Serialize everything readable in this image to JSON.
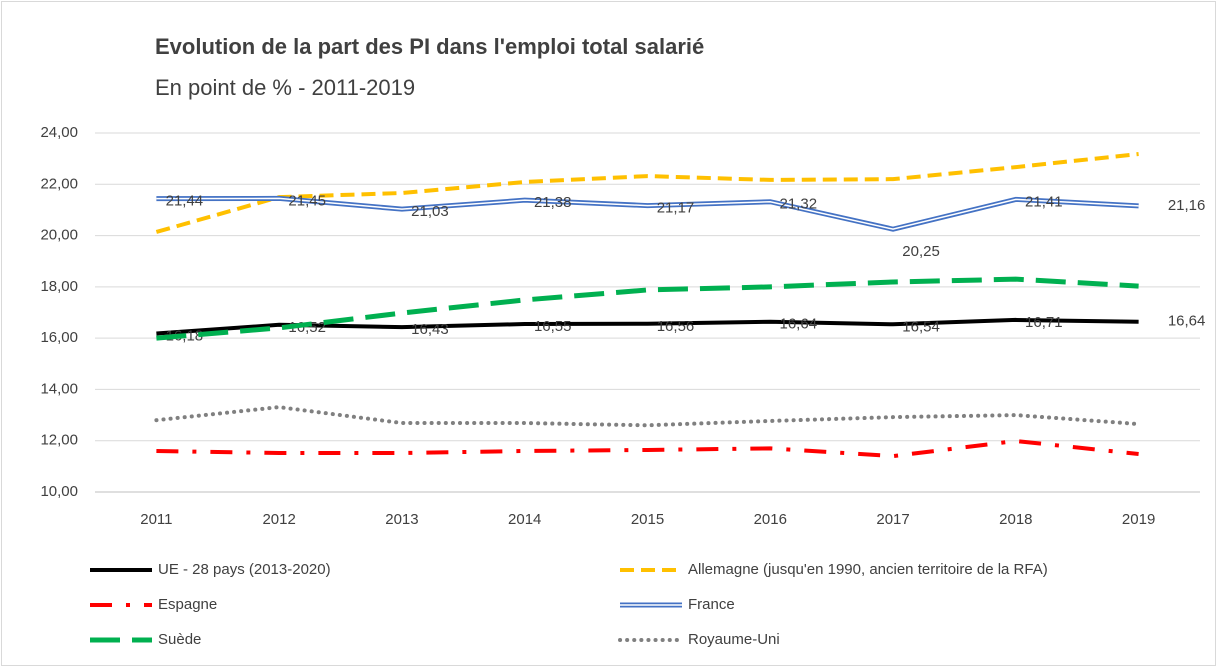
{
  "chart_data": {
    "type": "line",
    "title": "Evolution de la part des PI dans l'emploi total salarié",
    "subtitle": "En point de %  - 2011-2019",
    "categories": [
      "2011",
      "2012",
      "2013",
      "2014",
      "2015",
      "2016",
      "2017",
      "2018",
      "2019"
    ],
    "ylim": [
      10,
      24
    ],
    "yticks": [
      {
        "value": 10,
        "label": "10,00"
      },
      {
        "value": 12,
        "label": "12,00"
      },
      {
        "value": 14,
        "label": "14,00"
      },
      {
        "value": 16,
        "label": "16,00"
      },
      {
        "value": 18,
        "label": "18,00"
      },
      {
        "value": 20,
        "label": "20,00"
      },
      {
        "value": 22,
        "label": "22,00"
      },
      {
        "value": 24,
        "label": "24,00"
      }
    ],
    "grid": true,
    "legend": "bottom",
    "series": [
      {
        "name": "UE - 28 pays (2013-2020)",
        "color": "#000000",
        "style": "solid",
        "values": [
          16.18,
          16.52,
          16.43,
          16.55,
          16.56,
          16.64,
          16.54,
          16.71,
          16.64
        ],
        "value_labels": [
          "16,18",
          "16,52",
          "16,43",
          "16,55",
          "16,56",
          "16,64",
          "16,54",
          "16,71",
          "16,64"
        ]
      },
      {
        "name": "Allemagne (jusqu'en 1990, ancien territoire de la RFA)",
        "color": "#ffc000",
        "style": "dashed",
        "values": [
          20.14,
          21.5,
          21.66,
          22.09,
          22.32,
          22.17,
          22.2,
          22.67,
          23.18
        ]
      },
      {
        "name": "Espagne",
        "color": "#ff0000",
        "style": "dashdot",
        "values": [
          11.6,
          11.52,
          11.52,
          11.6,
          11.64,
          11.7,
          11.4,
          11.99,
          11.48
        ]
      },
      {
        "name": "France",
        "color": "#4472c4",
        "style": "double",
        "values": [
          21.44,
          21.45,
          21.03,
          21.38,
          21.17,
          21.32,
          20.25,
          21.41,
          21.16
        ],
        "value_labels": [
          "21,44",
          "21,45",
          "21,03",
          "21,38",
          "21,17",
          "21,32",
          "20,25",
          "21,41",
          "21,16"
        ]
      },
      {
        "name": "Suède",
        "color": "#00b050",
        "style": "longdash",
        "values": [
          16.0,
          16.4,
          16.98,
          17.49,
          17.88,
          18.0,
          18.19,
          18.3,
          18.03
        ]
      },
      {
        "name": "Royaume-Uni",
        "color": "#808080",
        "style": "dotted",
        "values": [
          12.8,
          13.31,
          12.69,
          12.69,
          12.6,
          12.77,
          12.92,
          13.0,
          12.65
        ]
      }
    ]
  }
}
